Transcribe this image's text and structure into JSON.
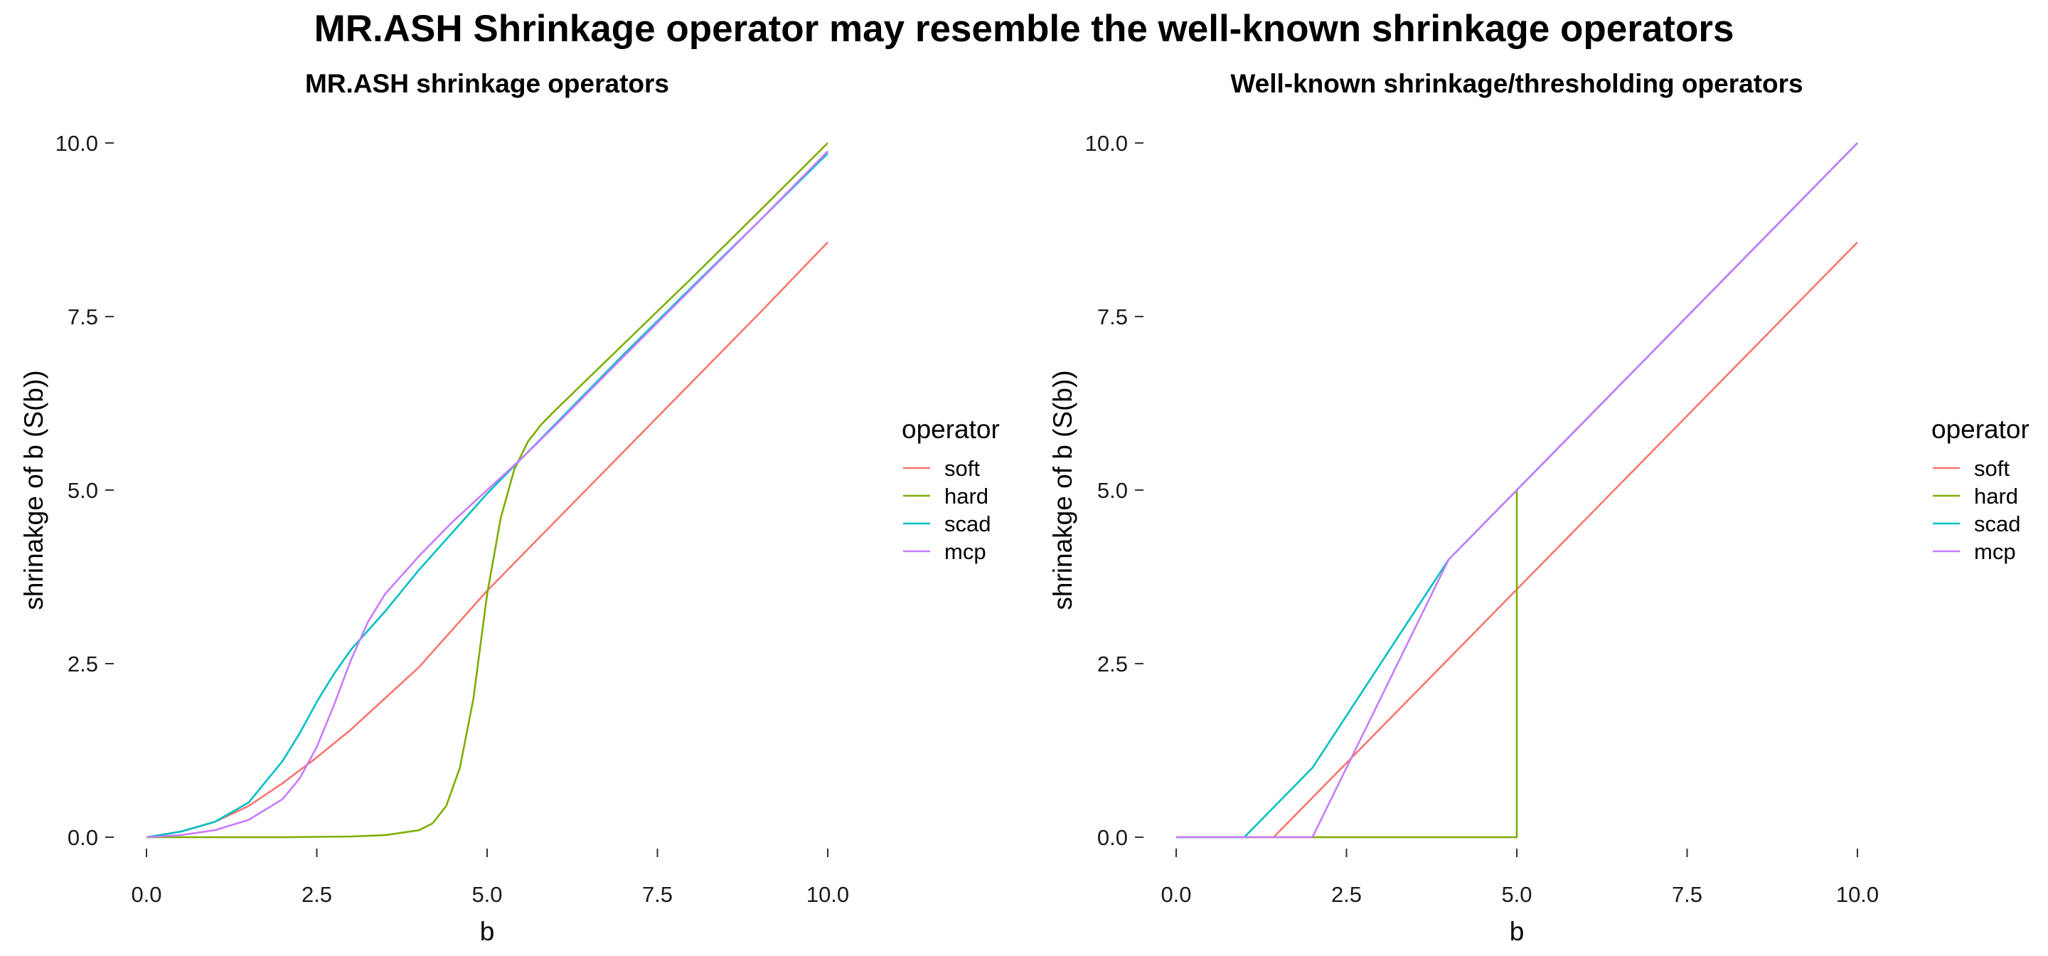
{
  "figure": {
    "title": "MR.ASH Shrinkage operator may resemble the well-known shrinkage operators"
  },
  "colors": {
    "soft": "#F8766D",
    "hard": "#7CAE00",
    "scad": "#00BFC4",
    "mcp": "#C77CFF"
  },
  "chart_data": [
    {
      "type": "line",
      "title": "MR.ASH shrinkage operators",
      "xlabel": "b",
      "ylabel": "shrinakge of b (S(b))",
      "xlim": [
        0,
        10
      ],
      "ylim": [
        0,
        10
      ],
      "xticks": [
        "0.0",
        "2.5",
        "5.0",
        "7.5",
        "10.0"
      ],
      "yticks": [
        "0.0",
        "2.5",
        "5.0",
        "7.5",
        "10.0"
      ],
      "grid": false,
      "legend": {
        "title": "operator",
        "position": "right",
        "entries": [
          "soft",
          "hard",
          "scad",
          "mcp"
        ]
      },
      "series": [
        {
          "name": "soft",
          "x": [
            0,
            0.5,
            1,
            1.5,
            2,
            2.5,
            3,
            4,
            5,
            6,
            7,
            8,
            9,
            10
          ],
          "y": [
            0,
            0.08,
            0.22,
            0.45,
            0.78,
            1.15,
            1.55,
            2.45,
            3.55,
            4.55,
            5.55,
            6.55,
            7.55,
            8.57
          ]
        },
        {
          "name": "hard",
          "x": [
            0,
            1,
            2,
            3,
            3.5,
            4,
            4.2,
            4.4,
            4.6,
            4.8,
            5,
            5.2,
            5.4,
            5.6,
            5.8,
            6,
            7,
            8,
            9,
            10
          ],
          "y": [
            0,
            0,
            0,
            0.01,
            0.03,
            0.1,
            0.2,
            0.45,
            1.0,
            2.0,
            3.5,
            4.6,
            5.3,
            5.7,
            5.95,
            6.15,
            7.1,
            8.05,
            9.02,
            10
          ]
        },
        {
          "name": "scad",
          "x": [
            0,
            0.5,
            1,
            1.5,
            2,
            2.25,
            2.5,
            2.75,
            3,
            3.5,
            4,
            4.5,
            5,
            5.5,
            6,
            7,
            8,
            9,
            10
          ],
          "y": [
            0,
            0.08,
            0.22,
            0.5,
            1.1,
            1.5,
            1.95,
            2.35,
            2.7,
            3.25,
            3.85,
            4.4,
            4.95,
            5.45,
            5.95,
            6.95,
            7.92,
            8.88,
            9.85
          ]
        },
        {
          "name": "mcp",
          "x": [
            0,
            0.5,
            1,
            1.5,
            2,
            2.25,
            2.5,
            2.75,
            3,
            3.25,
            3.5,
            4,
            4.5,
            5,
            5.5,
            6,
            7,
            8,
            9,
            10
          ],
          "y": [
            0,
            0.03,
            0.1,
            0.25,
            0.55,
            0.85,
            1.3,
            1.9,
            2.55,
            3.1,
            3.5,
            4.05,
            4.55,
            5.0,
            5.45,
            5.93,
            6.92,
            7.9,
            8.88,
            9.88
          ]
        }
      ]
    },
    {
      "type": "line",
      "title": "Well-known shrinkage/thresholding operators",
      "xlabel": "b",
      "ylabel": "shrinakge of b (S(b))",
      "xlim": [
        0,
        10
      ],
      "ylim": [
        0,
        10
      ],
      "xticks": [
        "0.0",
        "2.5",
        "5.0",
        "7.5",
        "10.0"
      ],
      "yticks": [
        "0.0",
        "2.5",
        "5.0",
        "7.5",
        "10.0"
      ],
      "grid": false,
      "legend": {
        "title": "operator",
        "position": "right",
        "entries": [
          "soft",
          "hard",
          "scad",
          "mcp"
        ]
      },
      "series": [
        {
          "name": "soft",
          "x": [
            0,
            1.43,
            10
          ],
          "y": [
            0,
            0,
            8.57
          ]
        },
        {
          "name": "hard",
          "x": [
            0,
            5,
            5,
            10
          ],
          "y": [
            0,
            0,
            5,
            10
          ]
        },
        {
          "name": "scad",
          "x": [
            0,
            1,
            2,
            4,
            10
          ],
          "y": [
            0,
            0,
            1,
            4,
            10
          ]
        },
        {
          "name": "mcp",
          "x": [
            0,
            2,
            4,
            10
          ],
          "y": [
            0,
            0,
            4,
            10
          ]
        }
      ]
    }
  ]
}
